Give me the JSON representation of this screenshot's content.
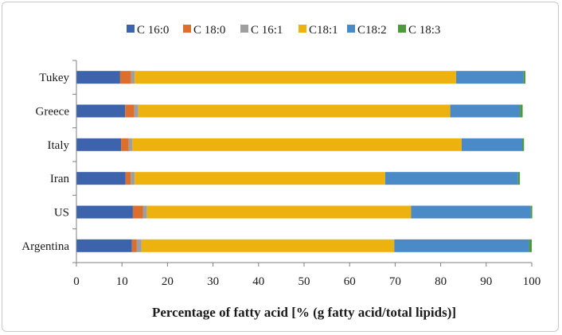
{
  "chart_data": {
    "type": "bar",
    "orientation": "horizontal",
    "stacked": true,
    "title": "",
    "xlabel": "Percentage of fatty acid [% (g fatty acid/total lipids)]",
    "ylabel": "",
    "xlim": [
      0,
      100
    ],
    "xticks": [
      0,
      10,
      20,
      30,
      40,
      50,
      60,
      70,
      80,
      90,
      100
    ],
    "grid": false,
    "legend_position": "top",
    "categories": [
      "Tukey",
      "Greece",
      "Italy",
      "Iran",
      "US",
      "Argentina"
    ],
    "series": [
      {
        "name": "C 16:0",
        "color": "#3d63ac",
        "values": [
          9.6,
          10.7,
          9.8,
          10.8,
          12.4,
          12.2
        ]
      },
      {
        "name": "C 18:0",
        "color": "#dd6f2c",
        "values": [
          2.4,
          2.0,
          1.7,
          1.1,
          2.2,
          1.0
        ]
      },
      {
        "name": "C 16:1",
        "color": "#9f9f9f",
        "values": [
          0.8,
          0.9,
          0.8,
          0.9,
          0.9,
          1.1
        ]
      },
      {
        "name": "C18:1",
        "color": "#eeb210",
        "values": [
          70.6,
          68.5,
          72.3,
          55.0,
          58.0,
          55.5
        ]
      },
      {
        "name": "C18:2",
        "color": "#4a8ac7",
        "values": [
          14.8,
          15.3,
          13.3,
          29.2,
          26.3,
          29.6
        ]
      },
      {
        "name": "C 18:3",
        "color": "#4c9a3b",
        "values": [
          0.4,
          0.6,
          0.4,
          0.4,
          0.3,
          0.6
        ]
      }
    ]
  }
}
